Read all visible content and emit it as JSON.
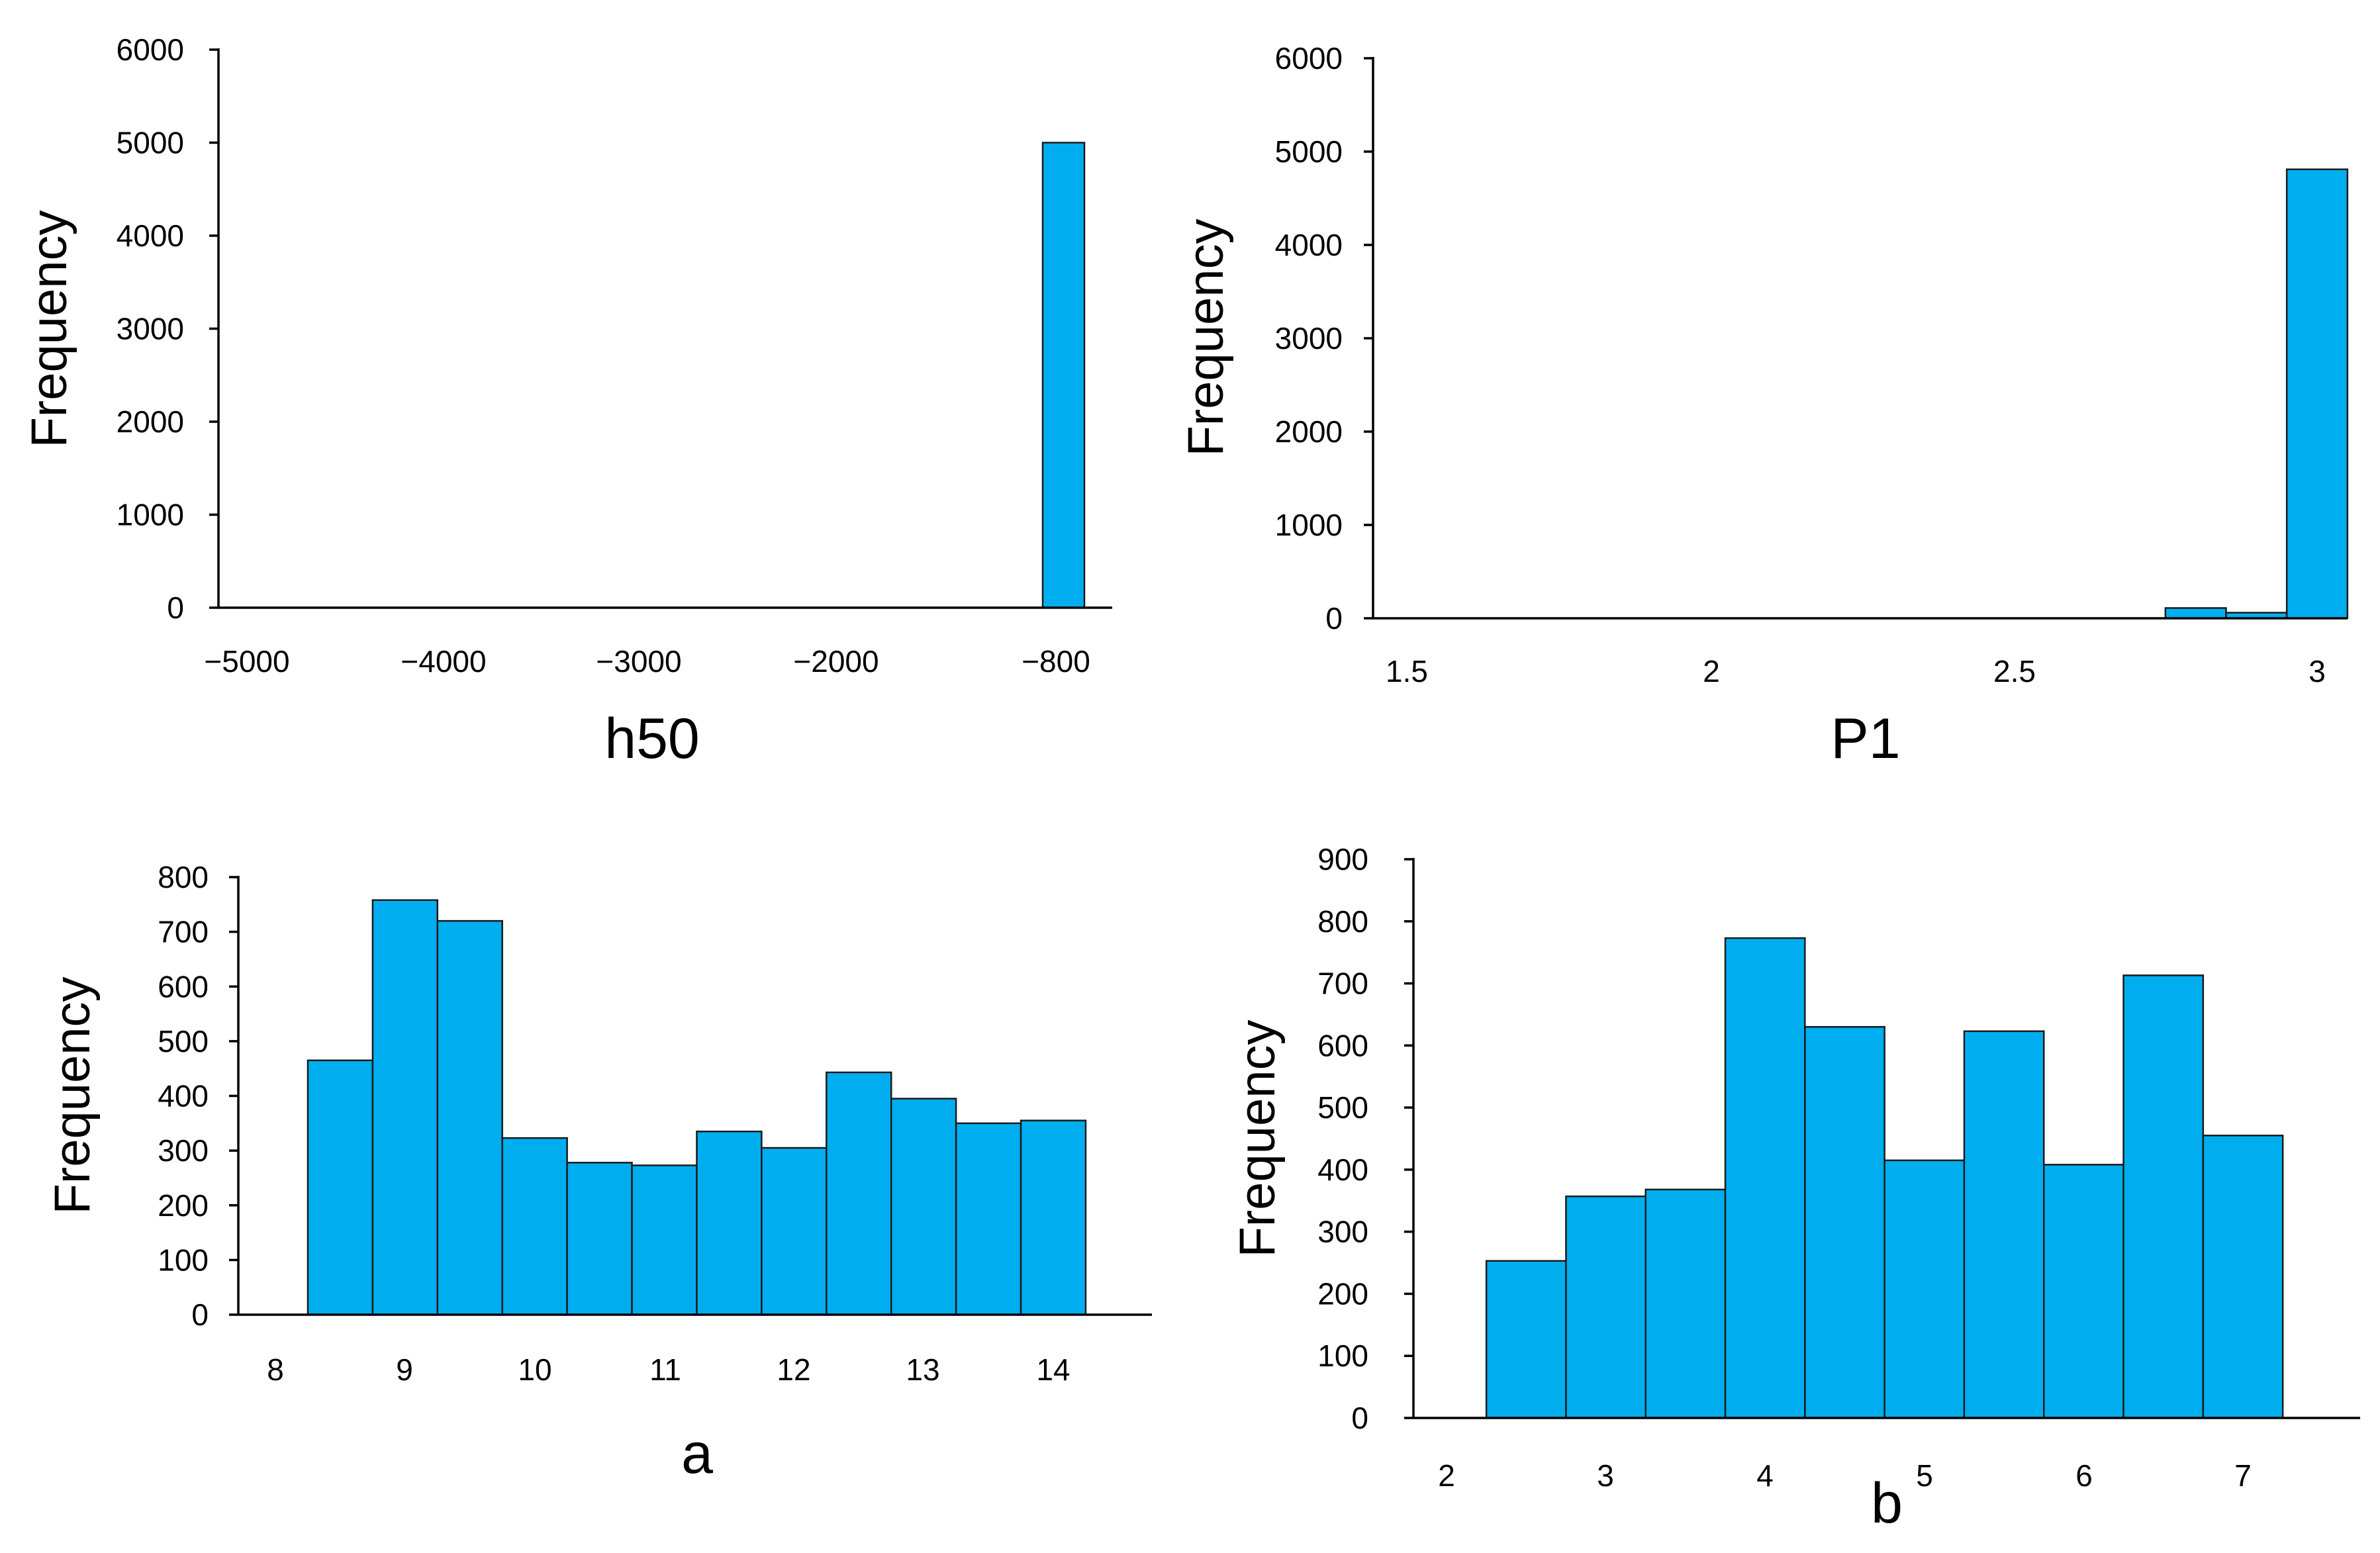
{
  "colors": {
    "bar": "#00AEEF",
    "axis": "#000000"
  },
  "chart_data": [
    {
      "type": "bar",
      "xlabel": "h50",
      "ylabel": "Frequency",
      "ylim": [
        0,
        6000
      ],
      "yticks": [
        "6000",
        "5000",
        "4000",
        "3000",
        "2000",
        "1000",
        "0"
      ],
      "xticks": [
        "−5000",
        "−4000",
        "−3000",
        "−2000",
        "−800"
      ],
      "bins": [
        {
          "x0": -1000,
          "x1": -800,
          "count": 5000
        }
      ]
    },
    {
      "type": "bar",
      "xlabel": "P1",
      "ylabel": "Frequency",
      "ylim": [
        0,
        6000
      ],
      "yticks": [
        "6000",
        "5000",
        "4000",
        "3000",
        "2000",
        "1000",
        "0"
      ],
      "xticks": [
        "1.5",
        "2",
        "2.5",
        "3"
      ],
      "bins": [
        {
          "x0": 2.75,
          "x1": 2.85,
          "count": 110
        },
        {
          "x0": 2.85,
          "x1": 2.95,
          "count": 60
        },
        {
          "x0": 2.95,
          "x1": 3.05,
          "count": 4810
        }
      ]
    },
    {
      "type": "bar",
      "xlabel": "a",
      "ylabel": "Frequency",
      "ylim": [
        0,
        800
      ],
      "yticks": [
        "800",
        "700",
        "600",
        "500",
        "400",
        "300",
        "200",
        "100",
        "0"
      ],
      "xticks": [
        "8",
        "9",
        "10",
        "11",
        "12",
        "13",
        "14"
      ],
      "bins": [
        {
          "x0": 8.25,
          "x1": 8.75,
          "count": 465
        },
        {
          "x0": 8.75,
          "x1": 9.25,
          "count": 758
        },
        {
          "x0": 9.25,
          "x1": 9.75,
          "count": 720
        },
        {
          "x0": 9.75,
          "x1": 10.25,
          "count": 323
        },
        {
          "x0": 10.25,
          "x1": 10.75,
          "count": 278
        },
        {
          "x0": 10.75,
          "x1": 11.25,
          "count": 273
        },
        {
          "x0": 11.25,
          "x1": 11.75,
          "count": 335
        },
        {
          "x0": 11.75,
          "x1": 12.25,
          "count": 305
        },
        {
          "x0": 12.25,
          "x1": 12.75,
          "count": 443
        },
        {
          "x0": 12.75,
          "x1": 13.25,
          "count": 395
        },
        {
          "x0": 13.25,
          "x1": 13.75,
          "count": 350
        },
        {
          "x0": 13.75,
          "x1": 14.25,
          "count": 355
        }
      ]
    },
    {
      "type": "bar",
      "xlabel": "b",
      "ylabel": "Frequency",
      "ylim": [
        0,
        900
      ],
      "yticks": [
        "900",
        "800",
        "700",
        "600",
        "500",
        "400",
        "300",
        "200",
        "100",
        "0"
      ],
      "xticks": [
        "2",
        "3",
        "4",
        "5",
        "6",
        "7"
      ],
      "bins": [
        {
          "x0": 2.25,
          "x1": 2.75,
          "count": 253
        },
        {
          "x0": 2.75,
          "x1": 3.25,
          "count": 357
        },
        {
          "x0": 3.25,
          "x1": 3.75,
          "count": 368
        },
        {
          "x0": 3.75,
          "x1": 4.25,
          "count": 773
        },
        {
          "x0": 4.25,
          "x1": 4.75,
          "count": 630
        },
        {
          "x0": 4.75,
          "x1": 5.25,
          "count": 415
        },
        {
          "x0": 5.25,
          "x1": 5.75,
          "count": 623
        },
        {
          "x0": 5.75,
          "x1": 6.25,
          "count": 408
        },
        {
          "x0": 6.25,
          "x1": 6.75,
          "count": 713
        },
        {
          "x0": 6.75,
          "x1": 7.25,
          "count": 455
        }
      ]
    }
  ]
}
